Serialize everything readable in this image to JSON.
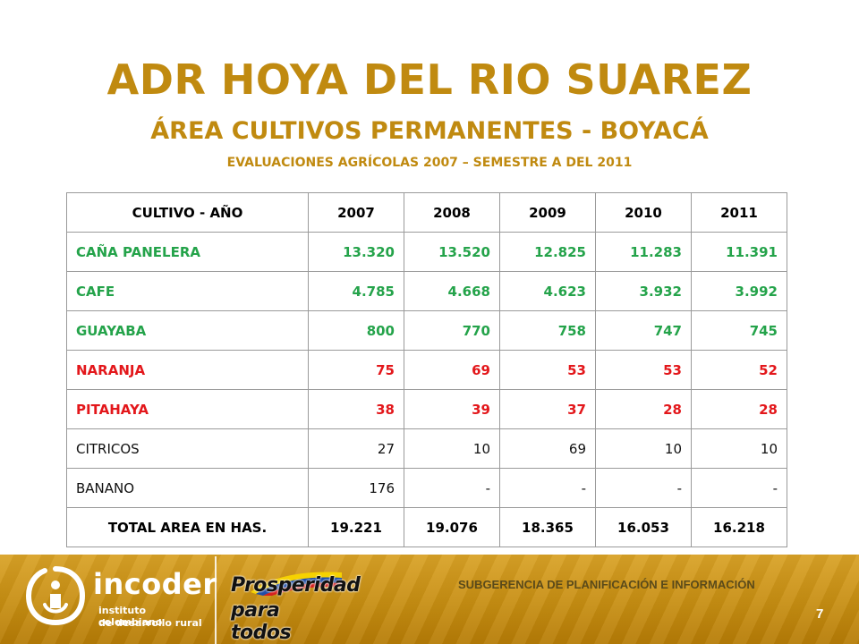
{
  "header": {
    "title": "ADR HOYA DEL RIO SUAREZ",
    "subtitle": "ÁREA CULTIVOS PERMANENTES - BOYACÁ",
    "subtitle2": "EVALUACIONES AGRÍCOLAS 2007 – SEMESTRE A DEL 2011"
  },
  "table": {
    "headers": [
      "CULTIVO  - AÑO",
      "2007",
      "2008",
      "2009",
      "2010",
      "2011"
    ],
    "rows": [
      {
        "name": "CAÑA PANELERA",
        "values": [
          "13.320",
          "13.520",
          "12.825",
          "11.283",
          "11.391"
        ],
        "style": "green"
      },
      {
        "name": "CAFE",
        "values": [
          "4.785",
          "4.668",
          "4.623",
          "3.932",
          "3.992"
        ],
        "style": "green"
      },
      {
        "name": "GUAYABA",
        "values": [
          "800",
          "770",
          "758",
          "747",
          "745"
        ],
        "style": "green"
      },
      {
        "name": "NARANJA",
        "values": [
          "75",
          "69",
          "53",
          "53",
          "52"
        ],
        "style": "red"
      },
      {
        "name": "PITAHAYA",
        "values": [
          "38",
          "39",
          "37",
          "28",
          "28"
        ],
        "style": "red"
      },
      {
        "name": "CITRICOS",
        "values": [
          "27",
          "10",
          "69",
          "10",
          "10"
        ],
        "style": "normal"
      },
      {
        "name": "BANANO",
        "values": [
          "176",
          "-",
          "-",
          "-",
          "-"
        ],
        "style": "normal"
      },
      {
        "name": "TOTAL AREA EN HAS.",
        "values": [
          "19.221",
          "19.076",
          "18.365",
          "16.053",
          "16.218"
        ],
        "style": "total"
      }
    ]
  },
  "footer": {
    "logo_word": "incoder",
    "logo_sub1": "instituto colombiano",
    "logo_sub2": "de desarrollo rural",
    "slogan_line1": "Prosperidad",
    "slogan_line2": "para todos",
    "department": "SUBGERENCIA DE PLANIFICACIÓN E INFORMACIÓN",
    "page_number": "7"
  },
  "colors": {
    "title": "#c08a10",
    "green_rows": "#24a34a",
    "red_rows": "#e3171b",
    "footer_band": "#c78e12"
  }
}
